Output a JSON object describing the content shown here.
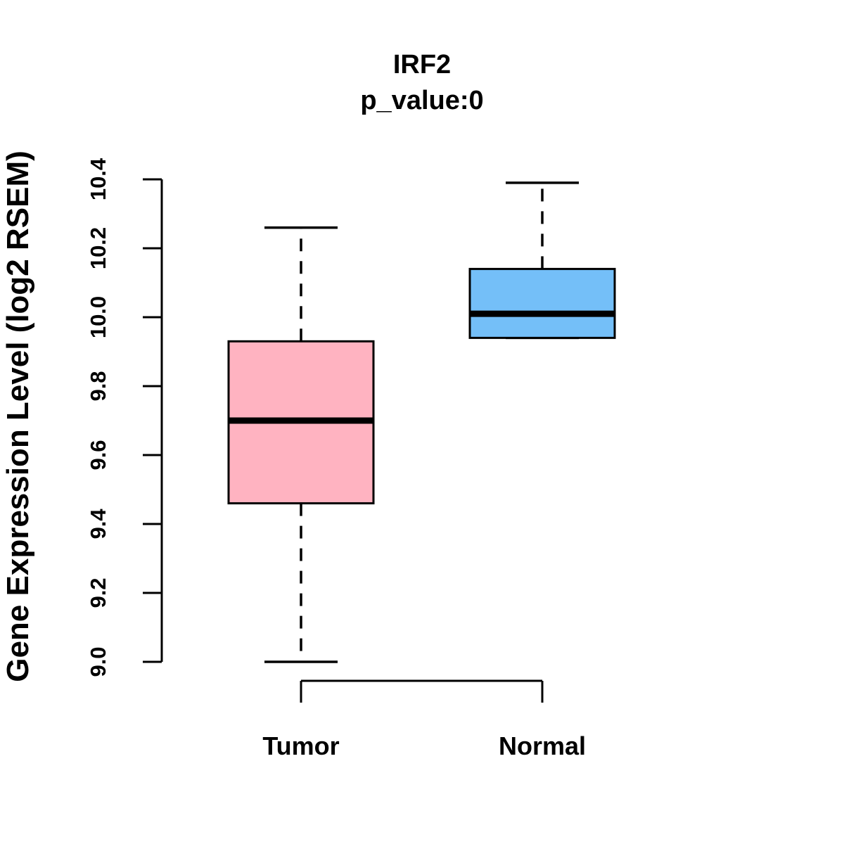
{
  "chart_data": {
    "type": "boxplot",
    "title": "IRF2",
    "subtitle": "p_value:0",
    "ylabel": "Gene Expression Level (log2 RSEM)",
    "xlabel": "",
    "ylim": [
      9.0,
      10.4
    ],
    "yticks": [
      9.0,
      9.2,
      9.4,
      9.6,
      9.8,
      10.0,
      10.2,
      10.4
    ],
    "ytick_labels": [
      "9.0",
      "9.2",
      "9.4",
      "9.6",
      "9.8",
      "10.0",
      "10.2",
      "10.4"
    ],
    "categories": [
      "Tumor",
      "Normal"
    ],
    "series": [
      {
        "name": "Tumor",
        "color": "#FFB3C1",
        "lower_whisker": 9.0,
        "q1": 9.46,
        "median": 9.7,
        "q3": 9.93,
        "upper_whisker": 10.26
      },
      {
        "name": "Normal",
        "color": "#74BFF8",
        "lower_whisker": 9.94,
        "q1": 9.94,
        "median": 10.01,
        "q3": 10.14,
        "upper_whisker": 10.39
      }
    ],
    "grid": false,
    "legend": null,
    "colors": {
      "axis": "#000000",
      "box_border": "#000000",
      "median": "#000000",
      "text": "#000000",
      "background": "#FFFFFF"
    }
  }
}
